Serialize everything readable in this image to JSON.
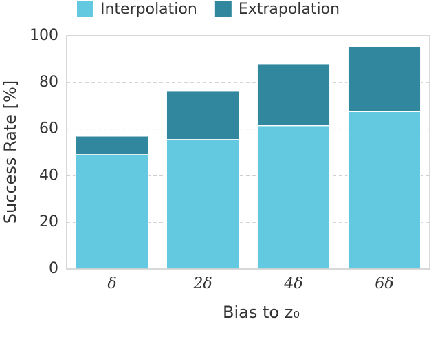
{
  "chart_data": {
    "type": "stacked_bar",
    "xlabel": "Bias to z₀",
    "ylabel": "Success Rate [%]",
    "categories": [
      "δ",
      "2δ",
      "4δ",
      "6δ"
    ],
    "series": [
      {
        "name": "Interpolation",
        "color": "#62c9e0",
        "values": [
          49,
          55.5,
          61.5,
          67.5
        ]
      },
      {
        "name": "Extrapolation",
        "color": "#31879e",
        "values": [
          8,
          21,
          26.5,
          28
        ]
      }
    ],
    "ylim": [
      0,
      100
    ],
    "yticks": [
      0,
      20,
      40,
      60,
      80,
      100
    ],
    "grid": true,
    "legend": "top"
  }
}
